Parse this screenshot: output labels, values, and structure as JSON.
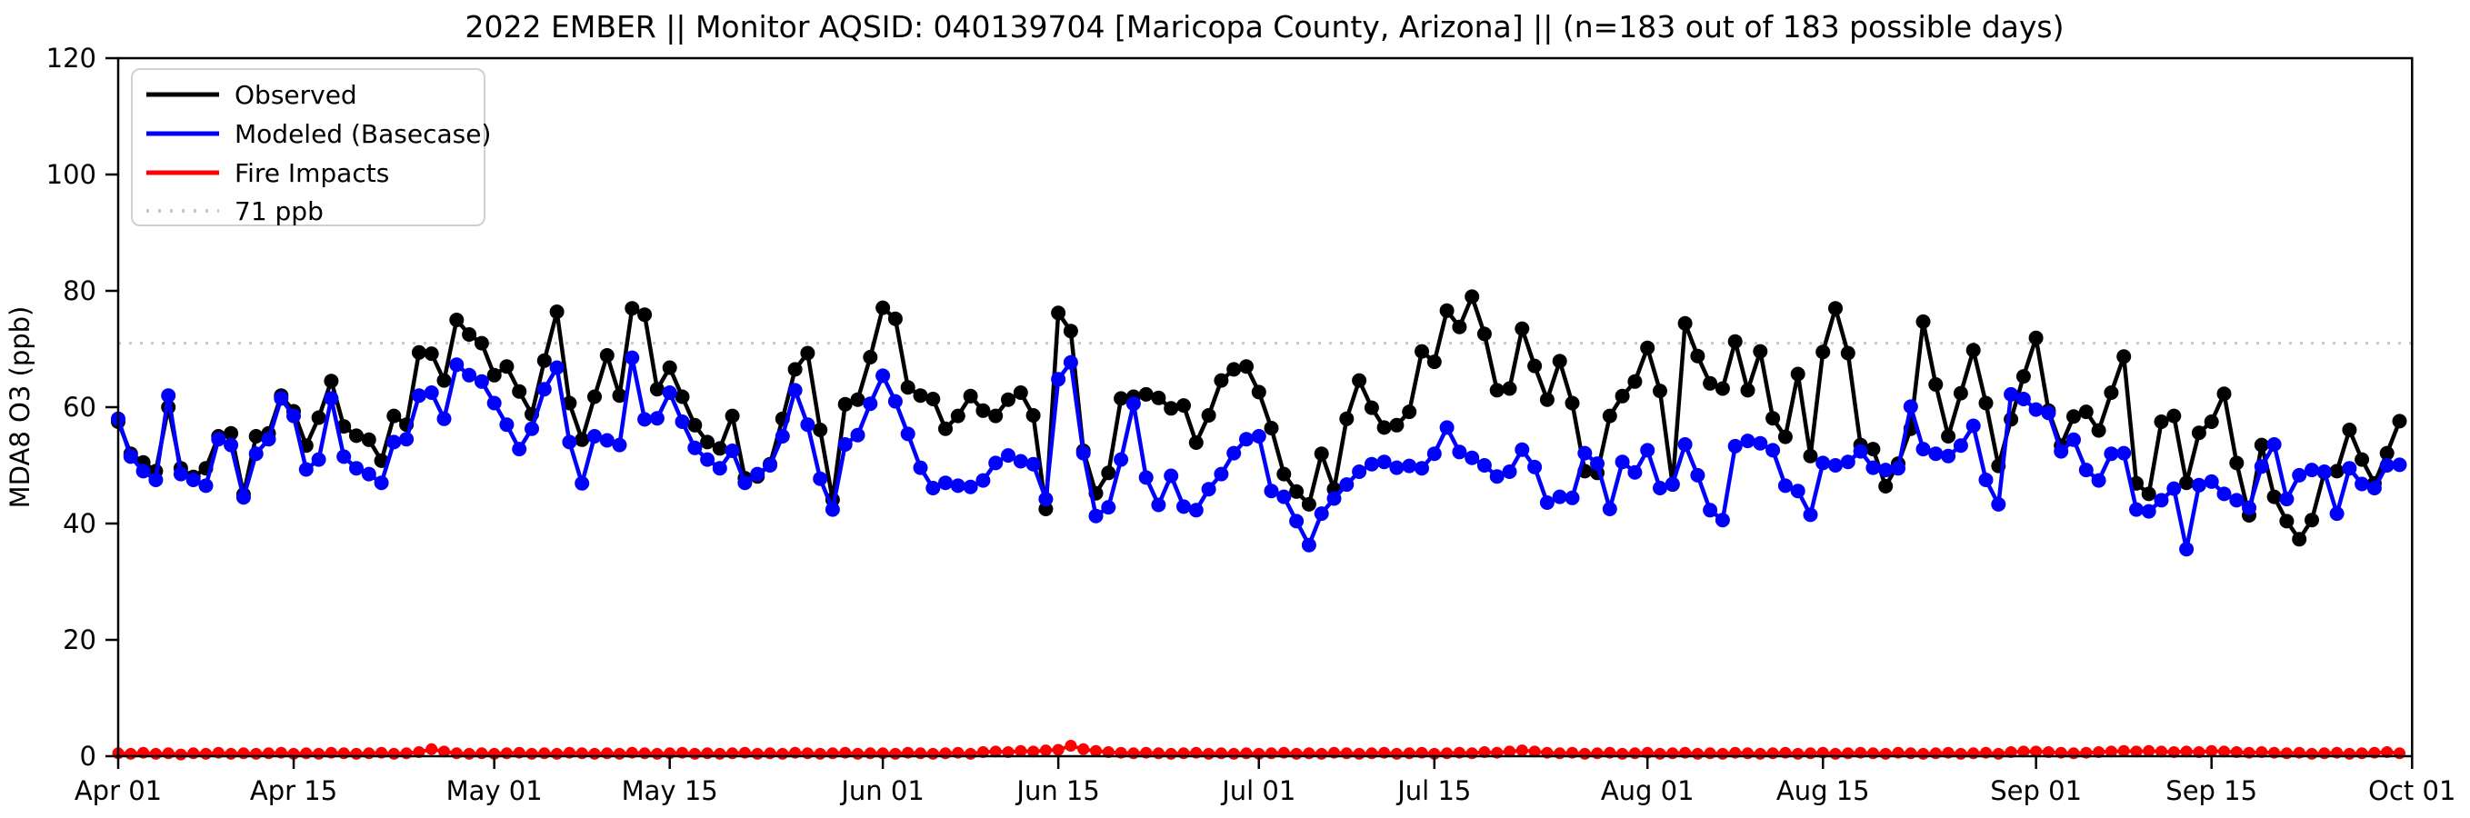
{
  "chart_data": {
    "type": "line",
    "title": "2022 EMBER || Monitor AQSID: 040139704 [Maricopa County, Arizona] || (n=183 out of 183 possible days)",
    "xlabel": "",
    "ylabel": "MDA8 O3 (ppb)",
    "ylim": [
      0,
      120
    ],
    "y_ticks": [
      0,
      20,
      40,
      60,
      80,
      100,
      120
    ],
    "x_start_date": "Apr 01",
    "x_end_date": "Oct 01",
    "n_days": 183,
    "grid": false,
    "legend_position": "upper left",
    "x_ticks": [
      {
        "label": "Apr 01",
        "day": 0
      },
      {
        "label": "Apr 15",
        "day": 14
      },
      {
        "label": "May 01",
        "day": 30
      },
      {
        "label": "May 15",
        "day": 44
      },
      {
        "label": "Jun 01",
        "day": 61
      },
      {
        "label": "Jun 15",
        "day": 75
      },
      {
        "label": "Jul 01",
        "day": 91
      },
      {
        "label": "Jul 15",
        "day": 105
      },
      {
        "label": "Aug 01",
        "day": 122
      },
      {
        "label": "Aug 15",
        "day": 136
      },
      {
        "label": "Sep 01",
        "day": 153
      },
      {
        "label": "Sep 15",
        "day": 167
      },
      {
        "label": "Oct 01",
        "day": 183
      }
    ],
    "threshold": {
      "label": "71 ppb",
      "value": 71,
      "color": "#c8c8c8"
    },
    "legend": [
      {
        "label": "Observed"
      },
      {
        "label": "Modeled (Basecase)"
      },
      {
        "label": "Fire Impacts"
      },
      {
        "label": "71 ppb"
      }
    ],
    "series": [
      {
        "name": "Observed",
        "color": "#000000",
        "values": [
          57.5,
          52,
          50.5,
          49,
          60,
          49.5,
          48,
          49.5,
          55,
          55.5,
          45,
          55,
          55.5,
          62,
          59.3,
          53.4,
          58.2,
          64.5,
          56.7,
          55.1,
          54.4,
          50.8,
          58.5,
          57,
          69.4,
          69.2,
          64.6,
          75,
          72.5,
          71,
          65.5,
          67,
          62.7,
          58.8,
          68,
          76.4,
          60.7,
          54.4,
          61.8,
          68.9,
          62,
          77,
          75.9,
          63.1,
          66.8,
          61.8,
          56.9,
          54,
          52.9,
          58.5,
          47.8,
          48.1,
          50.2,
          58,
          66.5,
          69.3,
          56.1,
          44.1,
          60.5,
          61.3,
          68.6,
          77.1,
          75.2,
          63.4,
          62,
          61.4,
          56.3,
          58.5,
          61.9,
          59.4,
          58.5,
          61.3,
          62.5,
          58.6,
          42.5,
          76.2,
          73.1,
          52.5,
          45.2,
          48.7,
          61.5,
          61.8,
          62.2,
          61.6,
          59.8,
          60.3,
          53.9,
          58.6,
          64.6,
          66.5,
          67,
          62.6,
          56.4,
          48.5,
          45.5,
          43.3,
          52,
          45.9,
          58,
          64.6,
          59.9,
          56.5,
          56.9,
          59.2,
          69.6,
          67.8,
          76.6,
          73.8,
          79,
          72.6,
          62.9,
          63.2,
          73.5,
          67.1,
          61.3,
          67.9,
          60.7,
          49,
          48.7,
          58.5,
          61.9,
          64.4,
          70.2,
          62.8,
          46.7,
          74.4,
          68.8,
          64.1,
          63.2,
          71.3,
          62.9,
          69.6,
          58.1,
          54.9,
          65.7,
          51.6,
          69.5,
          77,
          69.3,
          53.5,
          52.8,
          46.4,
          50.3,
          56.3,
          74.7,
          63.9,
          55,
          62.4,
          69.8,
          60.7,
          49.9,
          57.9,
          65.3,
          71.9,
          59.4,
          53.4,
          58.4,
          59.2,
          56,
          62.5,
          68.7,
          46.9,
          45.1,
          57.5,
          58.5,
          47,
          55.6,
          57.5,
          62.3,
          50.4,
          41.4,
          53.5,
          44.6,
          40.4,
          37.3,
          40.6,
          48.8,
          49,
          56.1,
          51,
          46.9,
          52.1,
          57.6
        ]
      },
      {
        "name": "Modeled (Basecase)",
        "color": "#0000ff",
        "values": [
          58,
          51.5,
          49,
          47.5,
          62,
          48.5,
          47.5,
          46.5,
          54.5,
          53.5,
          44.5,
          52,
          54.5,
          61.5,
          58.5,
          49.3,
          51,
          61.5,
          51.5,
          49.5,
          48.5,
          47,
          54,
          54.5,
          62,
          62.5,
          58,
          67.3,
          65.5,
          64.4,
          60.7,
          57,
          52.8,
          56.3,
          63.1,
          66.8,
          54,
          46.9,
          55,
          54.3,
          53.5,
          68.5,
          57.9,
          58.1,
          62.5,
          57.5,
          53,
          51,
          49.5,
          52.5,
          47,
          48.5,
          50,
          55,
          62.9,
          57,
          47.7,
          42.4,
          53.6,
          55.2,
          60.6,
          65.4,
          61,
          55.4,
          49.6,
          46.1,
          47,
          46.5,
          46.3,
          47.4,
          50.4,
          51.7,
          50.7,
          50.2,
          44.2,
          64.8,
          67.7,
          52.1,
          41.3,
          42.8,
          51,
          60.6,
          47.9,
          43.2,
          48.2,
          42.9,
          42.3,
          45.9,
          48.5,
          52.1,
          54.5,
          55,
          45.6,
          44.6,
          40.4,
          36.3,
          41.7,
          44.3,
          46.7,
          48.9,
          50.2,
          50.6,
          49.6,
          49.9,
          49.5,
          52,
          56.5,
          52.3,
          51.3,
          50,
          48.1,
          48.9,
          52.7,
          49.7,
          43.6,
          44.6,
          44.4,
          52.1,
          50.3,
          42.5,
          50.6,
          48.8,
          52.6,
          46.1,
          46.8,
          53.6,
          48.3,
          42.3,
          40.6,
          53.3,
          54.2,
          53.8,
          52.6,
          46.5,
          45.6,
          41.5,
          50.4,
          50,
          50.6,
          52.4,
          49.6,
          49.2,
          49.5,
          60.1,
          52.8,
          52,
          51.6,
          53.4,
          56.8,
          47.5,
          43.3,
          62.2,
          61.4,
          59.6,
          59,
          52.4,
          54.4,
          49.2,
          47.4,
          52,
          52.1,
          42.4,
          42.1,
          44,
          46,
          35.6,
          46.6,
          47.2,
          45.1,
          44,
          42.7,
          49.8,
          53.6,
          44.2,
          48.3,
          49.2,
          48.9,
          41.7,
          49.5,
          46.8,
          46.1,
          50,
          50.1
        ]
      },
      {
        "name": "Fire Impacts",
        "color": "#ff0000",
        "values": [
          0.5,
          0.4,
          0.6,
          0.4,
          0.5,
          0.3,
          0.5,
          0.4,
          0.6,
          0.4,
          0.5,
          0.4,
          0.5,
          0.6,
          0.4,
          0.5,
          0.4,
          0.6,
          0.5,
          0.4,
          0.5,
          0.6,
          0.4,
          0.5,
          0.7,
          1.2,
          0.8,
          0.5,
          0.4,
          0.5,
          0.4,
          0.5,
          0.6,
          0.4,
          0.5,
          0.4,
          0.6,
          0.5,
          0.4,
          0.5,
          0.4,
          0.6,
          0.5,
          0.4,
          0.5,
          0.6,
          0.4,
          0.5,
          0.4,
          0.5,
          0.6,
          0.4,
          0.5,
          0.4,
          0.6,
          0.5,
          0.4,
          0.5,
          0.6,
          0.4,
          0.5,
          0.5,
          0.4,
          0.6,
          0.5,
          0.4,
          0.5,
          0.6,
          0.4,
          0.7,
          0.8,
          0.7,
          0.9,
          0.8,
          1.0,
          1.1,
          1.8,
          1.2,
          0.9,
          0.7,
          0.6,
          0.5,
          0.6,
          0.5,
          0.4,
          0.5,
          0.6,
          0.4,
          0.5,
          0.4,
          0.5,
          0.4,
          0.5,
          0.6,
          0.4,
          0.5,
          0.4,
          0.6,
          0.5,
          0.4,
          0.5,
          0.6,
          0.4,
          0.5,
          0.6,
          0.4,
          0.5,
          0.6,
          0.5,
          0.7,
          0.6,
          0.8,
          1.0,
          0.8,
          0.6,
          0.5,
          0.6,
          0.4,
          0.5,
          0.6,
          0.4,
          0.5,
          0.6,
          0.4,
          0.5,
          0.6,
          0.4,
          0.5,
          0.4,
          0.6,
          0.5,
          0.4,
          0.5,
          0.6,
          0.4,
          0.5,
          0.6,
          0.4,
          0.5,
          0.6,
          0.5,
          0.4,
          0.6,
          0.5,
          0.4,
          0.5,
          0.6,
          0.4,
          0.5,
          0.6,
          0.4,
          0.7,
          0.8,
          0.8,
          0.7,
          0.6,
          0.5,
          0.6,
          0.7,
          0.8,
          0.9,
          0.8,
          0.9,
          0.8,
          0.7,
          0.8,
          0.7,
          0.9,
          0.8,
          0.7,
          0.6,
          0.7,
          0.6,
          0.5,
          0.6,
          0.4,
          0.5,
          0.6,
          0.4,
          0.5,
          0.6,
          0.7,
          0.5
        ]
      }
    ]
  }
}
